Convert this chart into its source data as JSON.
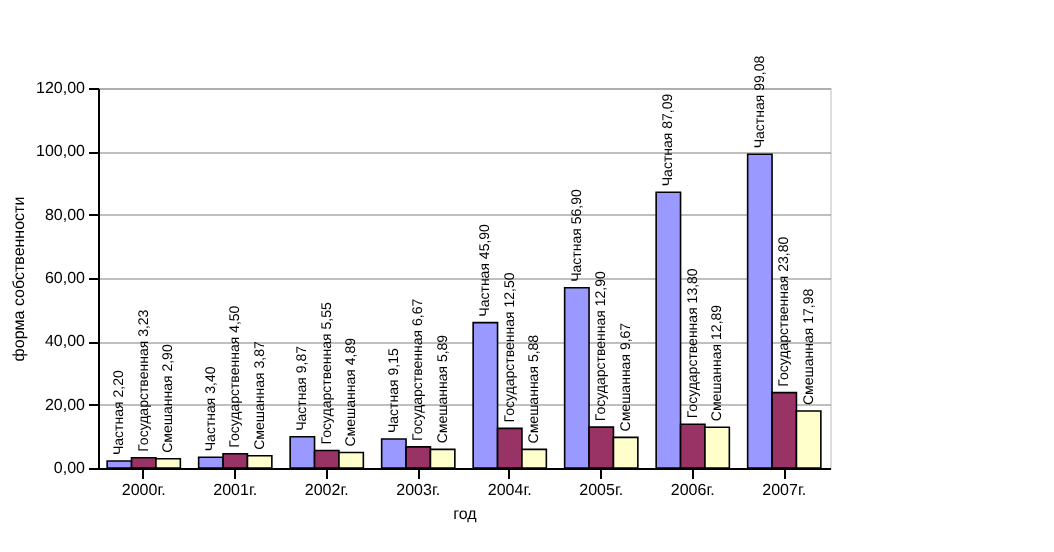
{
  "chart_data": {
    "type": "bar",
    "xlabel": "год",
    "ylabel": "форма собственности",
    "categories": [
      "2000г.",
      "2001г.",
      "2002г.",
      "2003г.",
      "2004г.",
      "2005г.",
      "2006г.",
      "2007г."
    ],
    "series": [
      {
        "name": "Частная",
        "color": "#9999ff",
        "values": [
          2.2,
          3.4,
          9.87,
          9.15,
          45.9,
          56.9,
          87.09,
          99.08
        ],
        "value_labels": [
          "2,20",
          "3,40",
          "9,87",
          "9,15",
          "45,90",
          "56,90",
          "87,09",
          "99,08"
        ]
      },
      {
        "name": "Государственная",
        "color": "#993366",
        "values": [
          3.23,
          4.5,
          5.55,
          6.67,
          12.5,
          12.9,
          13.8,
          23.8
        ],
        "value_labels": [
          "3,23",
          "4,50",
          "5,55",
          "6,67",
          "12,50",
          "12,90",
          "13,80",
          "23,80"
        ]
      },
      {
        "name": "Смешанная",
        "color": "#ffffcc",
        "values": [
          2.9,
          3.87,
          4.89,
          5.89,
          5.88,
          9.67,
          12.89,
          17.98
        ],
        "value_labels": [
          "2,90",
          "3,87",
          "4,89",
          "5,89",
          "5,88",
          "9,67",
          "12,89",
          "17,98"
        ]
      }
    ],
    "ylim": [
      0,
      120
    ],
    "yticks": [
      {
        "value": 0,
        "label": "0,00"
      },
      {
        "value": 20,
        "label": "20,00"
      },
      {
        "value": 40,
        "label": "40,00"
      },
      {
        "value": 60,
        "label": "60,00"
      },
      {
        "value": 80,
        "label": "80,00"
      },
      {
        "value": 100,
        "label": "100,00"
      },
      {
        "value": 120,
        "label": "120,00"
      }
    ],
    "grid": "y",
    "legend": false
  }
}
